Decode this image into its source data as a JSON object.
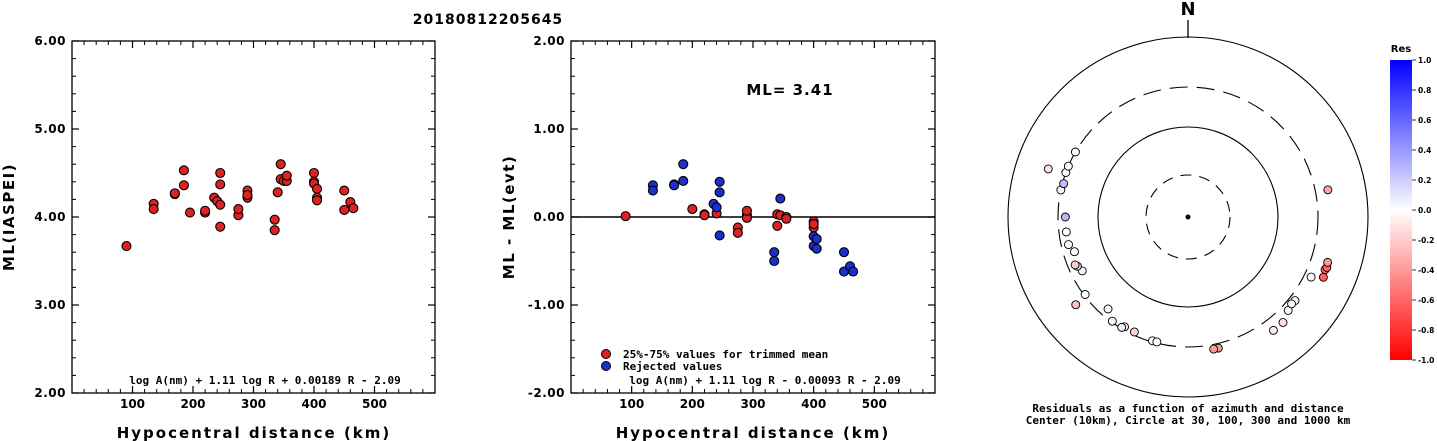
{
  "event_id": "20180812205645",
  "chart_data": [
    {
      "type": "scatter",
      "panel": "magnitude_vs_distance",
      "xlabel": "Hypocentral distance (km)",
      "ylabel": "ML(IASPEI)",
      "xlim": [
        0,
        600
      ],
      "ylim": [
        2.0,
        6.0
      ],
      "x_ticks": [
        "100",
        "200",
        "300",
        "400",
        "500"
      ],
      "y_ticks": [
        "2.00",
        "3.00",
        "4.00",
        "5.00",
        "6.00"
      ],
      "formula": "log A(nm) + 1.11 log R + 0.00189 R - 2.09",
      "grid": false,
      "series": [
        {
          "color": "#dd2222",
          "points": [
            [
              90,
              3.67
            ],
            [
              135,
              4.15
            ],
            [
              135,
              4.09
            ],
            [
              170,
              4.26
            ],
            [
              170,
              4.27
            ],
            [
              185,
              4.53
            ],
            [
              185,
              4.36
            ],
            [
              195,
              4.05
            ],
            [
              220,
              4.05
            ],
            [
              220,
              4.07
            ],
            [
              235,
              4.22
            ],
            [
              240,
              4.18
            ],
            [
              245,
              4.5
            ],
            [
              245,
              4.37
            ],
            [
              245,
              4.14
            ],
            [
              245,
              3.89
            ],
            [
              275,
              4.02
            ],
            [
              275,
              4.09
            ],
            [
              290,
              4.22
            ],
            [
              290,
              4.3
            ],
            [
              290,
              4.25
            ],
            [
              335,
              3.97
            ],
            [
              335,
              3.85
            ],
            [
              340,
              4.28
            ],
            [
              345,
              4.6
            ],
            [
              345,
              4.43
            ],
            [
              350,
              4.41
            ],
            [
              355,
              4.41
            ],
            [
              355,
              4.47
            ],
            [
              400,
              4.5
            ],
            [
              400,
              4.4
            ],
            [
              400,
              4.38
            ],
            [
              405,
              4.22
            ],
            [
              405,
              4.19
            ],
            [
              405,
              4.32
            ],
            [
              450,
              4.3
            ],
            [
              450,
              4.08
            ],
            [
              460,
              4.17
            ],
            [
              465,
              4.1
            ]
          ]
        }
      ]
    },
    {
      "type": "scatter",
      "panel": "residual_vs_distance",
      "xlabel": "Hypocentral distance (km)",
      "ylabel": "ML - ML(evt)",
      "xlim": [
        0,
        600
      ],
      "ylim": [
        -2.0,
        2.0
      ],
      "x_ticks": [
        "100",
        "200",
        "300",
        "400",
        "500"
      ],
      "y_ticks": [
        "-2.00",
        "-1.00",
        "0.00",
        "1.00",
        "2.00"
      ],
      "ml_label": "ML= 3.41",
      "formula": "log A(nm) + 1.11 log R - 0.00093 R - 2.09",
      "legend_position": "bottom-left",
      "series": [
        {
          "name": "25%-75% values for trimmed mean",
          "color": "#dd2222",
          "points": [
            [
              90,
              0.01
            ],
            [
              200,
              0.09
            ],
            [
              220,
              0.03
            ],
            [
              220,
              0.02
            ],
            [
              240,
              0.04
            ],
            [
              275,
              -0.12
            ],
            [
              275,
              -0.18
            ],
            [
              290,
              0.02
            ],
            [
              290,
              -0.01
            ],
            [
              290,
              0.07
            ],
            [
              340,
              0.03
            ],
            [
              340,
              -0.1
            ],
            [
              345,
              0.02
            ],
            [
              355,
              0.0
            ],
            [
              355,
              -0.02
            ],
            [
              400,
              -0.05
            ],
            [
              400,
              -0.12
            ],
            [
              400,
              -0.08
            ]
          ]
        },
        {
          "name": "Rejected values",
          "color": "#1a2fcc",
          "points": [
            [
              135,
              0.36
            ],
            [
              135,
              0.3
            ],
            [
              170,
              0.37
            ],
            [
              170,
              0.36
            ],
            [
              185,
              0.6
            ],
            [
              185,
              0.41
            ],
            [
              235,
              0.15
            ],
            [
              240,
              0.11
            ],
            [
              245,
              0.4
            ],
            [
              245,
              0.28
            ],
            [
              245,
              -0.21
            ],
            [
              335,
              -0.4
            ],
            [
              335,
              -0.5
            ],
            [
              345,
              0.21
            ],
            [
              400,
              -0.22
            ],
            [
              400,
              -0.33
            ],
            [
              405,
              -0.25
            ],
            [
              405,
              -0.36
            ],
            [
              450,
              -0.4
            ],
            [
              450,
              -0.62
            ],
            [
              460,
              -0.56
            ],
            [
              465,
              -0.62
            ]
          ]
        }
      ]
    },
    {
      "type": "scatter",
      "panel": "azimuth_distance_residuals",
      "north_label": "N",
      "caption_line1": "Residuals as a function of azimuth and distance",
      "caption_line2": "Center (10km), Circle at 30, 100, 300 and 1000 km",
      "rings_km": [
        30,
        100,
        300,
        1000
      ],
      "colorbar": {
        "title": "Res",
        "ticks": [
          "1.0",
          "0.8",
          "0.6",
          "0.4",
          "0.2",
          "0.0",
          "-0.2",
          "-0.4",
          "-0.6",
          "-0.8",
          "-1.0"
        ],
        "high_color": "#0000ff",
        "zero_color": "#ffffff",
        "low_color": "#ff0000"
      },
      "points": [
        {
          "az": 114,
          "dist": 465,
          "res": -0.62
        },
        {
          "az": 111,
          "dist": 450,
          "res": -0.56
        },
        {
          "az": 110,
          "dist": 460,
          "res": -0.62
        },
        {
          "az": 108,
          "dist": 450,
          "res": -0.4
        },
        {
          "az": 79,
          "dist": 405,
          "res": -0.36
        },
        {
          "az": 133,
          "dist": 355,
          "res": -0.02
        },
        {
          "az": 128,
          "dist": 345,
          "res": 0.02
        },
        {
          "az": 130,
          "dist": 340,
          "res": 0.03
        },
        {
          "az": 116,
          "dist": 355,
          "res": 0.0
        },
        {
          "az": 138,
          "dist": 400,
          "res": -0.12
        },
        {
          "az": 143,
          "dist": 400,
          "res": -0.08
        },
        {
          "az": 167,
          "dist": 335,
          "res": -0.4
        },
        {
          "az": 169,
          "dist": 335,
          "res": -0.4
        },
        {
          "az": 196,
          "dist": 290,
          "res": 0.02
        },
        {
          "az": 194,
          "dist": 290,
          "res": -0.01
        },
        {
          "az": 205,
          "dist": 275,
          "res": -0.18
        },
        {
          "az": 210,
          "dist": 275,
          "res": -0.12
        },
        {
          "az": 211,
          "dist": 290,
          "res": 0.07
        },
        {
          "az": 216,
          "dist": 290,
          "res": 0.02
        },
        {
          "az": 221,
          "dist": 240,
          "res": 0.04
        },
        {
          "az": 232,
          "dist": 405,
          "res": -0.25
        },
        {
          "az": 233,
          "dist": 290,
          "res": 0.0
        },
        {
          "az": 243,
          "dist": 220,
          "res": 0.02
        },
        {
          "az": 246,
          "dist": 235,
          "res": 0.15
        },
        {
          "az": 247,
          "dist": 245,
          "res": -0.21
        },
        {
          "az": 253,
          "dist": 220,
          "res": 0.0
        },
        {
          "az": 257,
          "dist": 245,
          "res": 0.0
        },
        {
          "az": 263,
          "dist": 245,
          "res": 0.0
        },
        {
          "az": 270,
          "dist": 245,
          "res": 0.28
        },
        {
          "az": 282,
          "dist": 300,
          "res": 0.03
        },
        {
          "az": 285,
          "dist": 290,
          "res": 0.25
        },
        {
          "az": 289,
          "dist": 460,
          "res": -0.1
        },
        {
          "az": 290,
          "dist": 300,
          "res": 0.0
        },
        {
          "az": 293,
          "dist": 300,
          "res": 0.0
        },
        {
          "az": 300,
          "dist": 300,
          "res": 0.0
        }
      ]
    }
  ]
}
